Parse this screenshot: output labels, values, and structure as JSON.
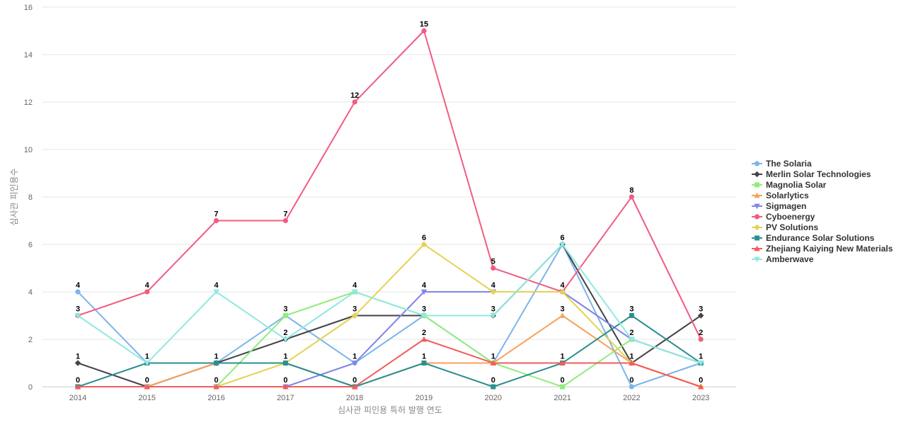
{
  "chart_data": {
    "type": "line",
    "xlabel": "심사관 피인용 특허 발행 연도",
    "ylabel": "심사관 피인용수",
    "x": [
      2014,
      2015,
      2016,
      2017,
      2018,
      2019,
      2020,
      2021,
      2022,
      2023
    ],
    "ylim": [
      0,
      16
    ],
    "yticks": [
      0,
      2,
      4,
      6,
      8,
      10,
      12,
      14,
      16
    ],
    "grid": true,
    "legend_position": "right",
    "series": [
      {
        "name": "The Solaria",
        "color": "#7cb5ec",
        "marker": "circle",
        "values": [
          4,
          1,
          1,
          3,
          1,
          3,
          1,
          6,
          0,
          1
        ]
      },
      {
        "name": "Merlin Solar Technologies",
        "color": "#434348",
        "marker": "diamond",
        "values": [
          1,
          0,
          1,
          2,
          3,
          3,
          3,
          6,
          1,
          3
        ]
      },
      {
        "name": "Magnolia Solar",
        "color": "#90ed7d",
        "marker": "square",
        "values": [
          0,
          0,
          0,
          3,
          4,
          3,
          1,
          0,
          2,
          1
        ]
      },
      {
        "name": "Solarlytics",
        "color": "#f7a35c",
        "marker": "triangle",
        "values": [
          0,
          0,
          1,
          1,
          0,
          1,
          1,
          3,
          1,
          0
        ]
      },
      {
        "name": "Sigmagen",
        "color": "#8085e9",
        "marker": "triangle-down",
        "values": [
          0,
          0,
          0,
          0,
          1,
          4,
          4,
          4,
          2,
          1
        ]
      },
      {
        "name": "Cyboenergy",
        "color": "#f15c80",
        "marker": "circle",
        "values": [
          3,
          4,
          7,
          7,
          12,
          15,
          5,
          4,
          8,
          2
        ]
      },
      {
        "name": "PV Solutions",
        "color": "#e4d354",
        "marker": "diamond",
        "values": [
          0,
          0,
          0,
          1,
          3,
          6,
          4,
          4,
          1,
          0
        ]
      },
      {
        "name": "Endurance Solar Solutions",
        "color": "#2b908f",
        "marker": "square",
        "values": [
          0,
          1,
          1,
          1,
          0,
          1,
          0,
          1,
          3,
          1
        ]
      },
      {
        "name": "Zhejiang Kaiying New Materials",
        "color": "#f45b5b",
        "marker": "triangle",
        "values": [
          0,
          0,
          0,
          0,
          0,
          2,
          1,
          1,
          1,
          0
        ]
      },
      {
        "name": "Amberwave",
        "color": "#91e8e1",
        "marker": "triangle-down",
        "values": [
          3,
          1,
          4,
          2,
          4,
          3,
          3,
          6,
          2,
          1
        ]
      }
    ],
    "data_labels": [
      {
        "x": 2014,
        "y": 4,
        "text": "4"
      },
      {
        "x": 2014,
        "y": 3,
        "text": "3"
      },
      {
        "x": 2014,
        "y": 1,
        "text": "1"
      },
      {
        "x": 2014,
        "y": 0,
        "text": "0"
      },
      {
        "x": 2015,
        "y": 4,
        "text": "4"
      },
      {
        "x": 2015,
        "y": 1,
        "text": "1"
      },
      {
        "x": 2015,
        "y": 0,
        "text": "0"
      },
      {
        "x": 2016,
        "y": 7,
        "text": "7"
      },
      {
        "x": 2016,
        "y": 4,
        "text": "4"
      },
      {
        "x": 2016,
        "y": 1,
        "text": "1"
      },
      {
        "x": 2016,
        "y": 0,
        "text": "0"
      },
      {
        "x": 2017,
        "y": 7,
        "text": "7"
      },
      {
        "x": 2017,
        "y": 3,
        "text": "3"
      },
      {
        "x": 2017,
        "y": 2,
        "text": "2"
      },
      {
        "x": 2017,
        "y": 1,
        "text": "1"
      },
      {
        "x": 2017,
        "y": 0,
        "text": "0"
      },
      {
        "x": 2018,
        "y": 12,
        "text": "12"
      },
      {
        "x": 2018,
        "y": 4,
        "text": "4"
      },
      {
        "x": 2018,
        "y": 3,
        "text": "3"
      },
      {
        "x": 2018,
        "y": 1,
        "text": "1"
      },
      {
        "x": 2018,
        "y": 0,
        "text": "0"
      },
      {
        "x": 2019,
        "y": 15,
        "text": "15"
      },
      {
        "x": 2019,
        "y": 6,
        "text": "6"
      },
      {
        "x": 2019,
        "y": 4,
        "text": "4"
      },
      {
        "x": 2019,
        "y": 3,
        "text": "3"
      },
      {
        "x": 2019,
        "y": 2,
        "text": "2"
      },
      {
        "x": 2019,
        "y": 1,
        "text": "1"
      },
      {
        "x": 2020,
        "y": 5,
        "text": "5"
      },
      {
        "x": 2020,
        "y": 4,
        "text": "4"
      },
      {
        "x": 2020,
        "y": 3,
        "text": "3"
      },
      {
        "x": 2020,
        "y": 1,
        "text": "1"
      },
      {
        "x": 2020,
        "y": 0,
        "text": "0"
      },
      {
        "x": 2021,
        "y": 6,
        "text": "6"
      },
      {
        "x": 2021,
        "y": 4,
        "text": "4"
      },
      {
        "x": 2021,
        "y": 3,
        "text": "3"
      },
      {
        "x": 2021,
        "y": 1,
        "text": "1"
      },
      {
        "x": 2021,
        "y": 0,
        "text": "0"
      },
      {
        "x": 2022,
        "y": 8,
        "text": "8"
      },
      {
        "x": 2022,
        "y": 3,
        "text": "3"
      },
      {
        "x": 2022,
        "y": 2,
        "text": "2"
      },
      {
        "x": 2022,
        "y": 1,
        "text": "1"
      },
      {
        "x": 2022,
        "y": 0,
        "text": "0"
      },
      {
        "x": 2023,
        "y": 3,
        "text": "3"
      },
      {
        "x": 2023,
        "y": 2,
        "text": "2"
      },
      {
        "x": 2023,
        "y": 1,
        "text": "1"
      },
      {
        "x": 2023,
        "y": 0,
        "text": "0"
      }
    ]
  }
}
